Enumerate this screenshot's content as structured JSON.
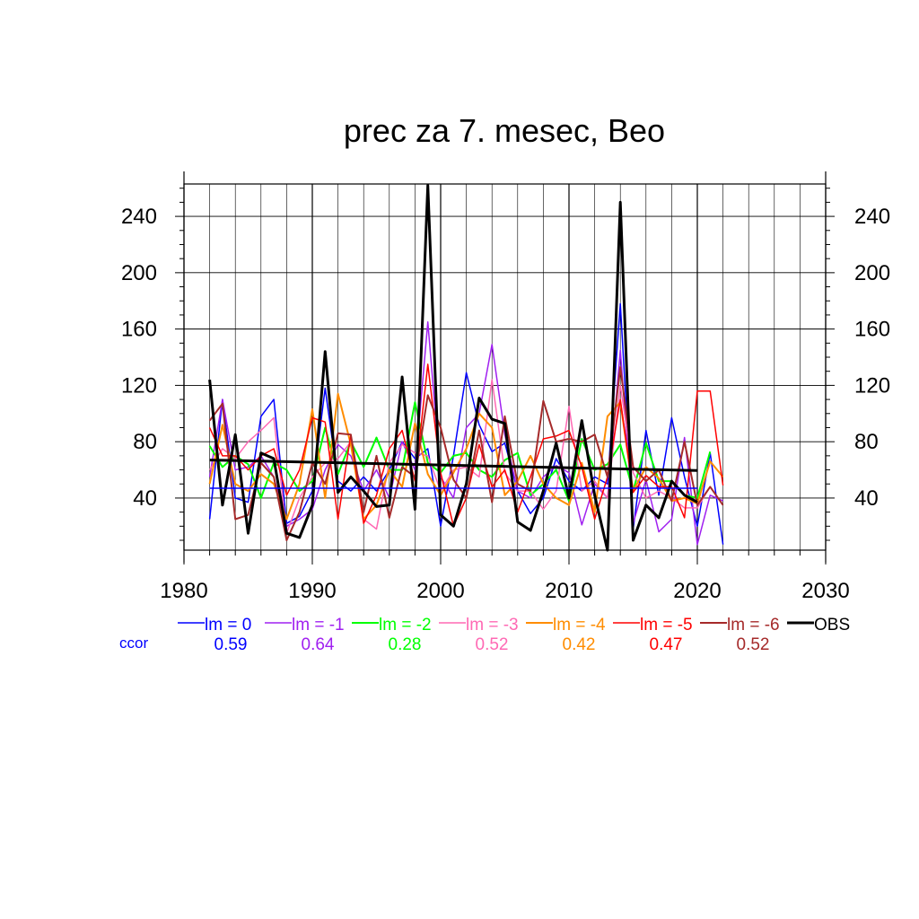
{
  "chart_data": {
    "type": "line",
    "title": "prec za 7. mesec, Beo",
    "xlabel": "",
    "ylabel": "",
    "xlim": [
      1980,
      2030
    ],
    "ylim": [
      3,
      263
    ],
    "x_ticks": [
      1980,
      1990,
      2000,
      2010,
      2020,
      2030
    ],
    "x_tick_labels": [
      "1980",
      "1990",
      "2000",
      "2010",
      "2020",
      "2030"
    ],
    "y_ticks": [
      40,
      80,
      120,
      160,
      200,
      240
    ],
    "y_tick_labels": [
      "40",
      "80",
      "120",
      "160",
      "200",
      "240"
    ],
    "grid": true,
    "legend_position": "bottom",
    "ccor_label": "ccor",
    "years": [
      1982,
      1983,
      1984,
      1985,
      1986,
      1987,
      1988,
      1989,
      1990,
      1991,
      1992,
      1993,
      1994,
      1995,
      1996,
      1997,
      1998,
      1999,
      2000,
      2001,
      2002,
      2003,
      2004,
      2005,
      2006,
      2007,
      2008,
      2009,
      2010,
      2011,
      2012,
      2013,
      2014,
      2015,
      2016,
      2017,
      2018,
      2019,
      2020,
      2021,
      2022
    ],
    "series": [
      {
        "name": "lm = 0",
        "ccor": "0.59",
        "color": "#0000ff",
        "width": 1.5,
        "values": [
          25,
          110,
          40,
          37,
          98,
          110,
          22,
          27,
          45,
          118,
          52,
          45,
          55,
          45,
          60,
          80,
          68,
          75,
          20,
          70,
          129,
          92,
          73,
          79,
          45,
          29,
          40,
          68,
          52,
          45,
          55,
          50,
          178,
          18,
          88,
          42,
          97,
          55,
          20,
          72,
          7
        ]
      },
      {
        "name": "lm = -1",
        "ccor": "0.64",
        "color": "#a020f0",
        "width": 1.5,
        "values": [
          55,
          110,
          60,
          62,
          70,
          55,
          20,
          25,
          32,
          60,
          78,
          70,
          45,
          60,
          40,
          80,
          60,
          165,
          55,
          40,
          90,
          100,
          149,
          85,
          45,
          40,
          55,
          63,
          58,
          21,
          50,
          40,
          145,
          22,
          53,
          16,
          25,
          83,
          7,
          42,
          38
        ]
      },
      {
        "name": "lm = -2",
        "ccor": "0.28",
        "color": "#00ff00",
        "width": 2,
        "values": [
          77,
          62,
          70,
          64,
          40,
          65,
          60,
          45,
          52,
          90,
          57,
          80,
          62,
          83,
          60,
          60,
          108,
          65,
          58,
          70,
          72,
          60,
          55,
          67,
          72,
          42,
          50,
          60,
          38,
          82,
          60,
          64,
          78,
          45,
          79,
          52,
          52,
          42,
          40,
          73,
          null
        ]
      },
      {
        "name": "lm = -3",
        "ccor": "0.52",
        "color": "#ff69b4",
        "width": 1.5,
        "values": [
          60,
          75,
          68,
          80,
          88,
          97,
          15,
          40,
          55,
          65,
          68,
          80,
          25,
          18,
          65,
          78,
          72,
          70,
          45,
          60,
          62,
          55,
          124,
          58,
          45,
          45,
          32,
          45,
          105,
          45,
          52,
          40,
          120,
          58,
          40,
          45,
          40,
          33,
          33,
          48,
          null
        ]
      },
      {
        "name": "lm = -4",
        "ccor": "0.42",
        "color": "#ff8c00",
        "width": 2,
        "values": [
          50,
          92,
          50,
          45,
          57,
          50,
          25,
          50,
          103,
          40,
          114,
          78,
          25,
          35,
          60,
          48,
          93,
          57,
          42,
          58,
          75,
          100,
          90,
          42,
          52,
          70,
          50,
          40,
          35,
          65,
          30,
          98,
          108,
          45,
          62,
          54,
          38,
          40,
          36,
          66,
          55
        ]
      },
      {
        "name": "lm = -5",
        "ccor": "0.47",
        "color": "#ff0000",
        "width": 1.5,
        "values": [
          90,
          70,
          70,
          60,
          70,
          75,
          42,
          60,
          97,
          94,
          25,
          85,
          22,
          42,
          75,
          88,
          52,
          135,
          58,
          20,
          40,
          78,
          48,
          60,
          30,
          55,
          82,
          84,
          88,
          62,
          25,
          55,
          110,
          44,
          56,
          48,
          48,
          26,
          116,
          116,
          49
        ]
      },
      {
        "name": "lm = -6",
        "ccor": "0.52",
        "color": "#a52a2a",
        "width": 2,
        "values": [
          95,
          107,
          25,
          28,
          65,
          55,
          10,
          30,
          65,
          50,
          86,
          85,
          30,
          70,
          26,
          62,
          55,
          113,
          90,
          53,
          40,
          88,
          37,
          98,
          50,
          45,
          109,
          80,
          82,
          80,
          85,
          55,
          133,
          62,
          52,
          60,
          38,
          80,
          35,
          48,
          35
        ]
      },
      {
        "name": "OBS",
        "ccor": "",
        "color": "#000000",
        "width": 3,
        "values": [
          124,
          35,
          85,
          15,
          72,
          68,
          15,
          12,
          35,
          144,
          44,
          55,
          45,
          34,
          35,
          126,
          32,
          262,
          28,
          20,
          50,
          111,
          96,
          93,
          23,
          17,
          45,
          79,
          40,
          95,
          42,
          3,
          250,
          10,
          35,
          26,
          52,
          42,
          37,
          null,
          null
        ]
      },
      {
        "name": "OBS trend",
        "ccor": "",
        "color": "#000000",
        "width": 3,
        "x": [
          1982,
          2020
        ],
        "values": [
          67,
          59.5
        ]
      },
      {
        "name": "lm = 0 trend",
        "ccor": "",
        "color": "#0000ff",
        "width": 1.5,
        "x": [
          1982,
          2020
        ],
        "values": [
          47,
          47
        ]
      }
    ]
  }
}
